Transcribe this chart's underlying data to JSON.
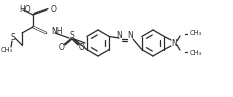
{
  "bg_color": "#ffffff",
  "line_color": "#2a2a2a",
  "figsize": [
    2.33,
    0.97
  ],
  "dpi": 100,
  "xlim": [
    0,
    233
  ],
  "ylim": [
    0,
    97
  ]
}
